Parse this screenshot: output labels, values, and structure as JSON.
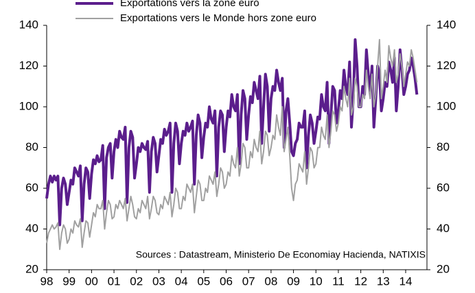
{
  "chart_data": {
    "type": "line",
    "annotation": "Sources : Datastream, Ministerio De Economiay Hacienda, NATIXIS",
    "categories": [
      "98",
      null,
      null,
      null,
      null,
      null,
      null,
      null,
      null,
      null,
      null,
      null,
      "99",
      null,
      null,
      null,
      null,
      null,
      null,
      null,
      null,
      null,
      null,
      null,
      "00",
      null,
      null,
      null,
      null,
      null,
      null,
      null,
      null,
      null,
      null,
      null,
      "01",
      null,
      null,
      null,
      null,
      null,
      null,
      null,
      null,
      null,
      null,
      null,
      "02",
      null,
      null,
      null,
      null,
      null,
      null,
      null,
      null,
      null,
      null,
      null,
      "03",
      null,
      null,
      null,
      null,
      null,
      null,
      null,
      null,
      null,
      null,
      null,
      "04",
      null,
      null,
      null,
      null,
      null,
      null,
      null,
      null,
      null,
      null,
      null,
      "05",
      null,
      null,
      null,
      null,
      null,
      null,
      null,
      null,
      null,
      null,
      null,
      "06",
      null,
      null,
      null,
      null,
      null,
      null,
      null,
      null,
      null,
      null,
      null,
      "07",
      null,
      null,
      null,
      null,
      null,
      null,
      null,
      null,
      null,
      null,
      null,
      "08",
      null,
      null,
      null,
      null,
      null,
      null,
      null,
      null,
      null,
      null,
      null,
      "09",
      null,
      null,
      null,
      null,
      null,
      null,
      null,
      null,
      null,
      null,
      null,
      "10",
      null,
      null,
      null,
      null,
      null,
      null,
      null,
      null,
      null,
      null,
      null,
      "11",
      null,
      null,
      null,
      null,
      null,
      null,
      null,
      null,
      null,
      null,
      null,
      "12",
      null,
      null,
      null,
      null,
      null,
      null,
      null,
      null,
      null,
      null,
      null,
      "13",
      null,
      null,
      null,
      null,
      null,
      null,
      null,
      null,
      null,
      null,
      null,
      "14",
      null,
      null,
      null,
      null,
      null,
      null
    ],
    "series": [
      {
        "name": "Exportations vers la zone euro",
        "color": "#5b1e8c",
        "width": 4,
        "values": [
          55,
          62,
          66,
          63,
          66,
          64,
          66,
          42,
          60,
          65,
          62,
          52,
          58,
          64,
          62,
          70,
          68,
          66,
          71,
          44,
          62,
          70,
          68,
          55,
          67,
          74,
          72,
          76,
          73,
          74,
          81,
          50,
          75,
          80,
          82,
          65,
          78,
          84,
          80,
          88,
          85,
          84,
          90,
          53,
          80,
          88,
          85,
          65,
          72,
          80,
          78,
          82,
          80,
          79,
          83,
          58,
          78,
          85,
          82,
          68,
          76,
          84,
          82,
          89,
          86,
          88,
          92,
          58,
          82,
          92,
          88,
          72,
          82,
          88,
          86,
          92,
          88,
          90,
          93,
          62,
          86,
          96,
          92,
          75,
          85,
          92,
          90,
          100,
          94,
          92,
          98,
          66,
          90,
          98,
          96,
          78,
          90,
          98,
          95,
          106,
          100,
          98,
          106,
          72,
          96,
          108,
          104,
          84,
          96,
          105,
          102,
          112,
          108,
          104,
          115,
          82,
          100,
          116,
          110,
          88,
          104,
          110,
          108,
          118,
          112,
          108,
          114,
          80,
          98,
          104,
          92,
          78,
          76,
          82,
          84,
          92,
          90,
          90,
          98,
          70,
          86,
          96,
          92,
          82,
          88,
          95,
          94,
          106,
          100,
          98,
          112,
          82,
          96,
          110,
          108,
          92,
          98,
          108,
          104,
          118,
          110,
          106,
          122,
          90,
          104,
          133,
          120,
          100,
          100,
          110,
          106,
          128,
          116,
          108,
          120,
          90,
          104,
          120,
          116,
          98,
          104,
          112,
          110,
          122,
          118,
          112,
          124,
          98,
          110,
          128,
          118,
          106,
          110,
          116,
          118,
          124,
          120,
          114,
          106
        ]
      },
      {
        "name": "Exportations vers le Monde hors zone euro",
        "color": "#a0a0a0",
        "width": 2,
        "values": [
          33,
          38,
          40,
          42,
          40,
          41,
          43,
          30,
          38,
          42,
          40,
          33,
          35,
          40,
          38,
          44,
          42,
          41,
          45,
          31,
          38,
          44,
          43,
          36,
          42,
          48,
          46,
          52,
          50,
          50,
          54,
          40,
          48,
          54,
          52,
          45,
          46,
          52,
          50,
          54,
          52,
          50,
          55,
          44,
          50,
          56,
          52,
          46,
          45,
          50,
          48,
          54,
          52,
          50,
          56,
          45,
          50,
          56,
          54,
          48,
          47,
          52,
          50,
          56,
          54,
          52,
          58,
          46,
          52,
          60,
          58,
          50,
          50,
          56,
          54,
          62,
          60,
          58,
          62,
          48,
          56,
          64,
          62,
          54,
          54,
          60,
          58,
          66,
          64,
          62,
          68,
          56,
          62,
          70,
          68,
          60,
          62,
          68,
          66,
          76,
          72,
          70,
          80,
          66,
          72,
          82,
          80,
          70,
          70,
          78,
          75,
          84,
          80,
          78,
          88,
          72,
          78,
          88,
          86,
          76,
          80,
          86,
          84,
          96,
          90,
          86,
          100,
          78,
          84,
          90,
          76,
          60,
          54,
          62,
          64,
          72,
          70,
          68,
          78,
          62,
          70,
          80,
          78,
          70,
          72,
          80,
          80,
          90,
          86,
          84,
          96,
          80,
          88,
          98,
          96,
          88,
          92,
          100,
          98,
          110,
          104,
          100,
          114,
          96,
          100,
          114,
          110,
          100,
          100,
          106,
          104,
          118,
          110,
          104,
          116,
          100,
          106,
          120,
          133,
          104,
          110,
          118,
          112,
          130,
          124,
          120,
          128,
          112,
          116,
          126,
          120,
          110,
          116,
          122,
          120,
          128,
          124,
          118,
          112
        ]
      }
    ],
    "ylim": [
      20,
      140
    ],
    "yticks": [
      20,
      40,
      60,
      80,
      100,
      120,
      140
    ],
    "y2lim": [
      20,
      140
    ],
    "y2ticks": [
      20,
      40,
      60,
      80,
      100,
      120,
      140
    ]
  }
}
